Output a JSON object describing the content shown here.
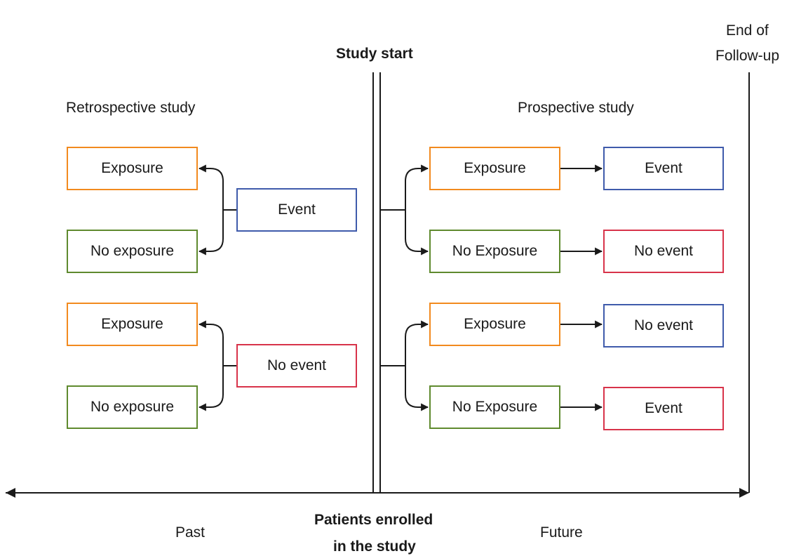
{
  "labels": {
    "study_start": "Study start",
    "end_of_followup_line1": "End of",
    "end_of_followup_line2": "Follow-up",
    "retrospective": "Retrospective study",
    "prospective": "Prospective study",
    "past": "Past",
    "future": "Future",
    "enrolled_line1": "Patients enrolled",
    "enrolled_line2": "in the study"
  },
  "colors": {
    "exposure": "#f28a1e",
    "no_exposure": "#5f8a2e",
    "event": "#3f5bab",
    "no_event": "#d8334a",
    "line": "#1a1a1a"
  },
  "retrospective": {
    "group1": {
      "outcome": "Event",
      "exposure": "Exposure",
      "no_exposure": "No exposure"
    },
    "group2": {
      "outcome": "No event",
      "exposure": "Exposure",
      "no_exposure": "No exposure"
    }
  },
  "prospective": {
    "group1": {
      "exposure": "Exposure",
      "exposure_outcome": "Event",
      "no_exposure": "No Exposure",
      "no_exposure_outcome": "No event"
    },
    "group2": {
      "exposure": "Exposure",
      "exposure_outcome": "No event",
      "no_exposure": "No Exposure",
      "no_exposure_outcome": "Event"
    }
  }
}
